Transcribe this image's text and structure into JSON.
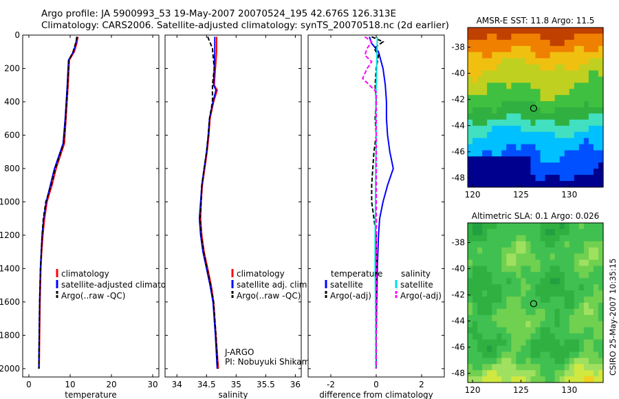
{
  "header": {
    "line1": "Argo profile: JA 5900993_53 19-May-2007 20070524_195 42.676S 126.313E",
    "line2": "Climatology: CARS2006. Satellite-adjusted climatology: synTS_20070518.nc (2d earlier)"
  },
  "credit": "CSIRO 25-May-2007 10:35:15",
  "colors": {
    "climatology": "#ff0000",
    "satellite": "#0000ff",
    "argo": "#000000",
    "sal_satellite": "#00e0e0",
    "sal_argo": "#ff00ff"
  },
  "chart_data": [
    {
      "type": "line",
      "name": "temperature-profile",
      "xlabel": "temperature",
      "ylabel": "",
      "xlim": [
        -1.5,
        31.5
      ],
      "ylim": [
        2050,
        0
      ],
      "xticks": [
        0,
        10,
        20,
        30
      ],
      "yticks": [
        0,
        200,
        400,
        600,
        800,
        1000,
        1200,
        1400,
        1600,
        1800,
        2000
      ],
      "series": [
        {
          "name": "climatology",
          "color": "#ff0000",
          "dash": "",
          "depth": [
            10,
            50,
            100,
            150,
            300,
            500,
            650,
            800,
            900,
            1000,
            1100,
            1200,
            1300,
            1400,
            1600,
            1800,
            2000
          ],
          "values": [
            11.9,
            11.6,
            11.0,
            9.8,
            9.5,
            9.0,
            8.6,
            6.6,
            5.6,
            4.4,
            3.8,
            3.4,
            3.1,
            2.9,
            2.7,
            2.6,
            2.5
          ]
        },
        {
          "name": "satellite-adjusted climatology",
          "color": "#0000ff",
          "dash": "",
          "depth": [
            10,
            50,
            100,
            150,
            300,
            500,
            650,
            800,
            900,
            1000,
            1100,
            1200,
            1300,
            1400,
            1600,
            1800,
            2000
          ],
          "values": [
            11.6,
            11.4,
            10.8,
            9.6,
            9.3,
            8.8,
            8.3,
            6.2,
            5.2,
            4.2,
            3.6,
            3.2,
            3.0,
            2.8,
            2.6,
            2.5,
            2.4
          ]
        },
        {
          "name": "Argo(..raw -QC)",
          "color": "#000000",
          "dash": "6,3",
          "depth": [
            10,
            50,
            100,
            150,
            300,
            500,
            650,
            800,
            900,
            1000,
            1100,
            1200,
            1300,
            1400,
            1600,
            1800,
            2000
          ],
          "values": [
            11.7,
            11.3,
            10.7,
            9.7,
            9.4,
            8.9,
            8.4,
            6.4,
            5.4,
            4.1,
            3.5,
            3.2,
            3.0,
            2.8,
            2.6,
            2.5,
            2.4
          ]
        }
      ],
      "legend": [
        "climatology",
        "satellite-adjusted climatology",
        "Argo(..raw -QC)"
      ]
    },
    {
      "type": "line",
      "name": "salinity-profile",
      "xlabel": "salinity",
      "xlim": [
        33.8,
        36.1
      ],
      "ylim": [
        2050,
        0
      ],
      "xticks": [
        34,
        34.5,
        35,
        35.5,
        36
      ],
      "series": [
        {
          "name": "climatology",
          "color": "#ff0000",
          "dash": "",
          "depth": [
            10,
            100,
            200,
            300,
            330,
            400,
            500,
            600,
            700,
            800,
            900,
            1000,
            1100,
            1200,
            1300,
            1400,
            1500,
            1600,
            1800,
            2000
          ],
          "values": [
            34.67,
            34.67,
            34.65,
            34.63,
            34.68,
            34.62,
            34.56,
            34.54,
            34.51,
            34.47,
            34.43,
            34.41,
            34.4,
            34.42,
            34.46,
            34.52,
            34.58,
            34.62,
            34.66,
            34.7
          ]
        },
        {
          "name": "satellite adj. clim.",
          "color": "#0000ff",
          "dash": "",
          "depth": [
            10,
            100,
            200,
            300,
            330,
            400,
            500,
            600,
            700,
            800,
            900,
            1000,
            1100,
            1200,
            1300,
            1400,
            1500,
            1600,
            1800,
            2000
          ],
          "values": [
            34.64,
            34.64,
            34.63,
            34.62,
            34.66,
            34.61,
            34.55,
            34.53,
            34.5,
            34.46,
            34.42,
            34.4,
            34.38,
            34.4,
            34.44,
            34.5,
            34.56,
            34.61,
            34.65,
            34.68
          ]
        },
        {
          "name": "Argo(..raw -QC)",
          "color": "#000000",
          "dash": "6,3",
          "depth": [
            10,
            80,
            200,
            300,
            400,
            500,
            600,
            700,
            800,
            900,
            1000,
            1100,
            1200,
            1300,
            1400,
            1500,
            1600,
            1800,
            2000
          ],
          "values": [
            34.52,
            34.6,
            34.63,
            34.6,
            34.6,
            34.55,
            34.53,
            34.5,
            34.46,
            34.42,
            34.41,
            34.39,
            34.41,
            34.45,
            34.51,
            34.57,
            34.62,
            34.66,
            34.69
          ]
        }
      ],
      "legend": [
        "climatology",
        "satellite adj. clim.",
        "Argo(..raw -QC)"
      ],
      "annotation": [
        "J-ARGO",
        "PI: Nobuyuki Shikama"
      ]
    },
    {
      "type": "line",
      "name": "difference-profile",
      "xlabel": "difference from climatology",
      "xlim": [
        -3,
        3
      ],
      "ylim": [
        2050,
        0
      ],
      "xticks": [
        -2,
        0,
        2
      ],
      "series": [
        {
          "name": "temperature satellite",
          "color": "#0000ff",
          "dash": "",
          "depth": [
            10,
            50,
            100,
            200,
            300,
            400,
            500,
            600,
            700,
            800,
            900,
            1000,
            1100,
            1200,
            1400,
            1600,
            1800,
            2000
          ],
          "values": [
            -0.3,
            -0.2,
            0.1,
            0.3,
            0.4,
            0.45,
            0.45,
            0.5,
            0.6,
            0.75,
            0.5,
            0.3,
            0.15,
            0.1,
            0.05,
            0.02,
            0.0,
            0.0
          ]
        },
        {
          "name": "temperature Argo(-adj)",
          "color": "#000000",
          "dash": "6,3",
          "depth": [
            10,
            40,
            80,
            120,
            200,
            300,
            400,
            500,
            600,
            700,
            800,
            900,
            1000,
            1100,
            1200,
            1400,
            1600,
            1800,
            2000
          ],
          "values": [
            -0.2,
            0.3,
            -0.1,
            0.1,
            0.0,
            -0.05,
            0.0,
            -0.05,
            0.0,
            -0.1,
            -0.15,
            -0.2,
            -0.2,
            -0.1,
            0.0,
            0.0,
            0.0,
            0.0,
            0.0
          ]
        },
        {
          "name": "salinity satellite",
          "color": "#00e0e0",
          "dash": "",
          "depth": [
            10,
            200,
            400,
            600,
            800,
            1000,
            1200,
            1400,
            1600,
            1800,
            2000
          ],
          "values": [
            0.05,
            0.02,
            -0.02,
            0.0,
            -0.02,
            -0.03,
            -0.05,
            -0.05,
            -0.03,
            -0.02,
            -0.02
          ]
        },
        {
          "name": "salinity Argo(-adj)",
          "color": "#ff00ff",
          "dash": "6,3",
          "depth": [
            10,
            40,
            80,
            120,
            160,
            200,
            260,
            300,
            340,
            400,
            500,
            700,
            900,
            1100,
            1300,
            1500,
            1700,
            2000
          ],
          "values": [
            -0.5,
            -0.2,
            -0.4,
            -0.5,
            -0.2,
            -0.4,
            -0.6,
            -0.3,
            0.0,
            0.0,
            0.0,
            0.0,
            0.0,
            0.0,
            0.0,
            0.0,
            0.0,
            0.0
          ]
        }
      ],
      "legend_temperature_title": "temperature",
      "legend_salinity_title": "salinity",
      "legend_temperature": [
        "satellite",
        "Argo(-adj)"
      ],
      "legend_salinity": [
        "satellite",
        "Argo(-adj)"
      ]
    },
    {
      "type": "heatmap",
      "name": "sst-map",
      "title": "AMSR-E SST: 11.8 Argo: 11.5",
      "xlim": [
        119.5,
        133.5
      ],
      "ylim": [
        -48.7,
        -36.5
      ],
      "xticks": [
        120,
        125,
        130
      ],
      "yticks": [
        -38,
        -40,
        -42,
        -44,
        -46,
        -48
      ],
      "marker": {
        "lon": 126.313,
        "lat": -42.676
      },
      "colormap": [
        "#00008f",
        "#0050ff",
        "#00c0ff",
        "#40e0c0",
        "#30b040",
        "#40c040",
        "#c0d020",
        "#f0c010",
        "#f08000",
        "#c04000"
      ]
    },
    {
      "type": "heatmap",
      "name": "sla-map",
      "title": "Altimetric SLA: 0.1 Argo: 0.026",
      "xlim": [
        119.5,
        133.5
      ],
      "ylim": [
        -48.7,
        -36.5
      ],
      "xticks": [
        120,
        125,
        130
      ],
      "yticks": [
        -38,
        -40,
        -42,
        -44,
        -46,
        -48
      ],
      "marker": {
        "lon": 126.313,
        "lat": -42.676
      },
      "colormap": [
        "#20a040",
        "#30b040",
        "#40c050",
        "#70d050",
        "#a0e060",
        "#d0e840",
        "#f0d020",
        "#f0a020"
      ]
    }
  ]
}
